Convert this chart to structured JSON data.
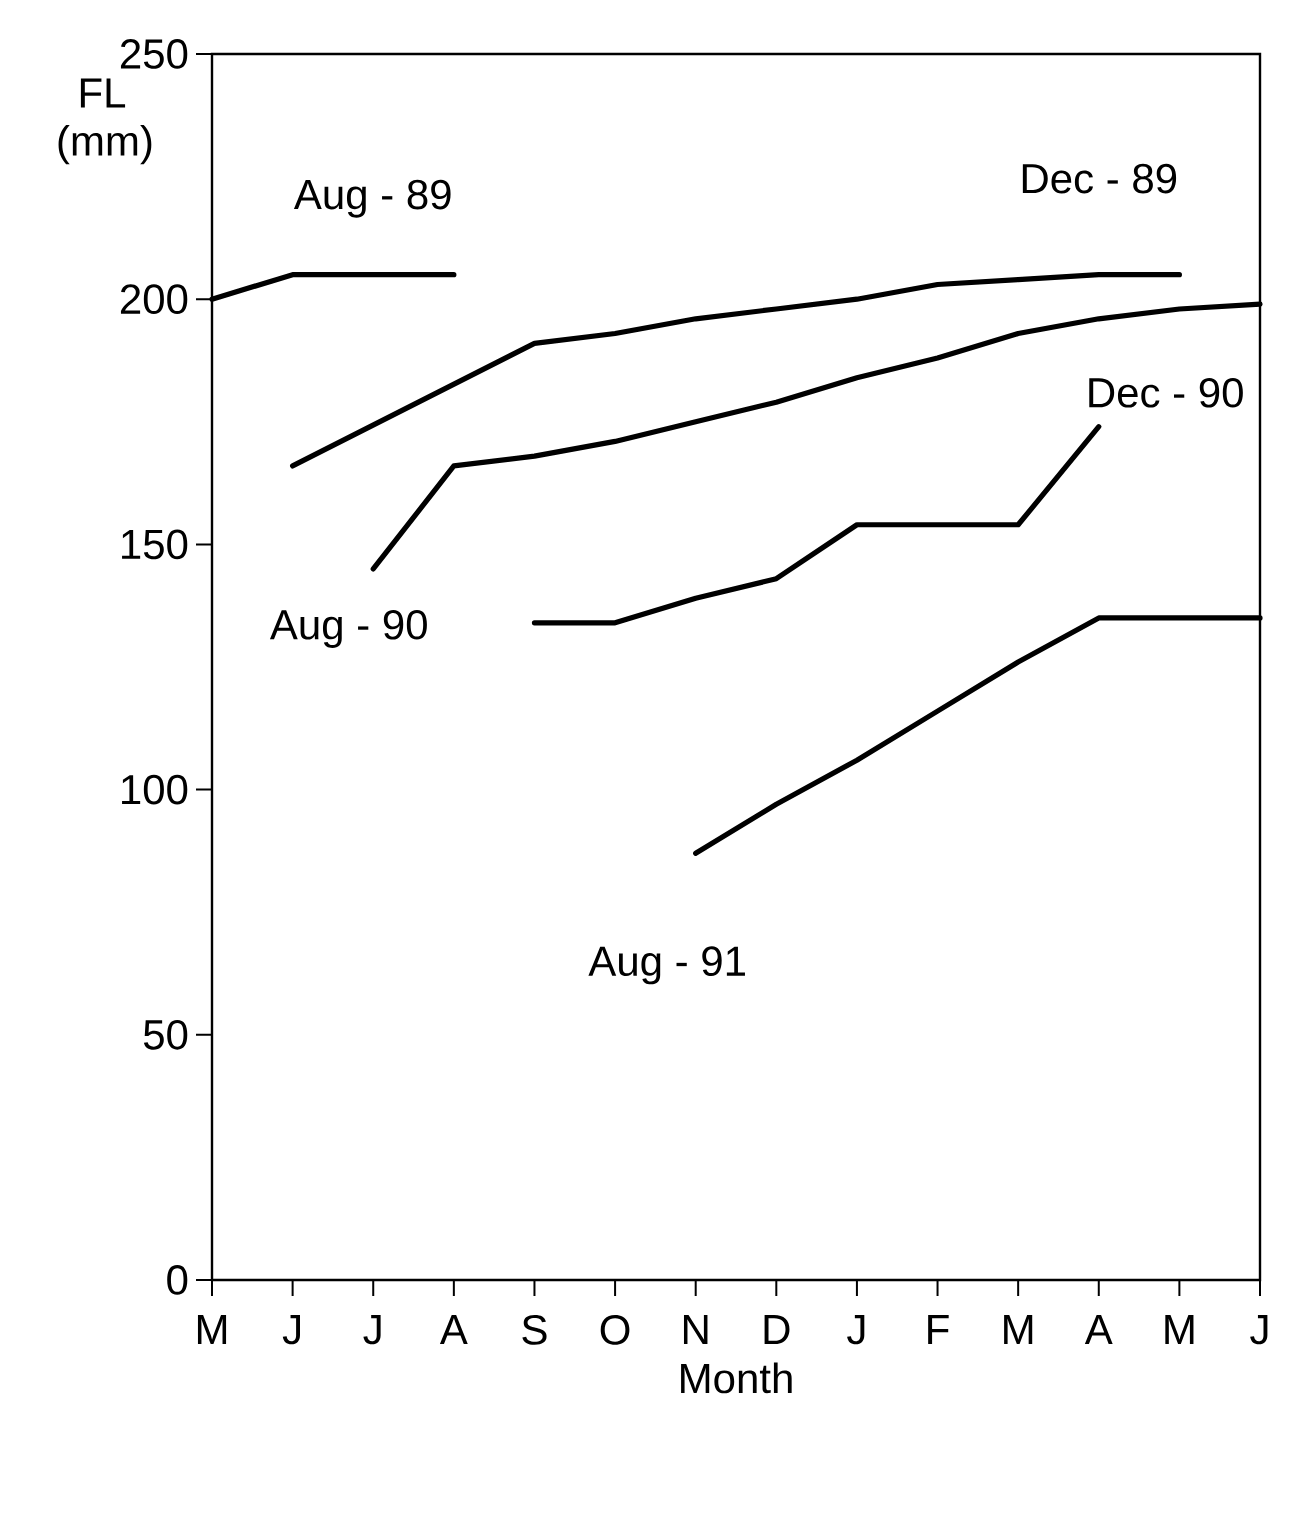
{
  "chart_data": {
    "type": "line",
    "xlabel": "Month",
    "ylabel": "FL (mm)",
    "categories": [
      "M",
      "J",
      "J",
      "A",
      "S",
      "O",
      "N",
      "D",
      "J",
      "F",
      "M",
      "A",
      "M",
      "J"
    ],
    "ylim": [
      0,
      250
    ],
    "yticks": [
      0,
      50,
      100,
      150,
      200,
      250
    ],
    "line_style": "solid",
    "series": [
      {
        "name": "Aug - 89",
        "color": "#000000",
        "values": [
          200,
          205,
          205,
          205,
          null,
          null,
          null,
          null,
          null,
          null,
          null,
          null,
          null,
          null
        ]
      },
      {
        "name": "Dec - 89",
        "color": "#000000",
        "values": [
          null,
          166,
          null,
          null,
          191,
          193,
          196,
          198,
          200,
          203,
          204,
          205,
          205,
          null
        ]
      },
      {
        "name": "Aug - 90",
        "color": "#000000",
        "values": [
          null,
          null,
          145,
          166,
          168,
          171,
          175,
          179,
          184,
          188,
          193,
          196,
          198,
          199
        ]
      },
      {
        "name": "Dec - 90",
        "color": "#000000",
        "values": [
          null,
          null,
          null,
          null,
          134,
          134,
          139,
          143,
          154,
          154,
          154,
          174,
          null,
          null
        ]
      },
      {
        "name": "Aug - 91",
        "color": "#000000",
        "values": [
          null,
          null,
          null,
          null,
          null,
          null,
          87,
          97,
          106,
          116,
          126,
          135,
          135,
          135
        ]
      }
    ]
  }
}
